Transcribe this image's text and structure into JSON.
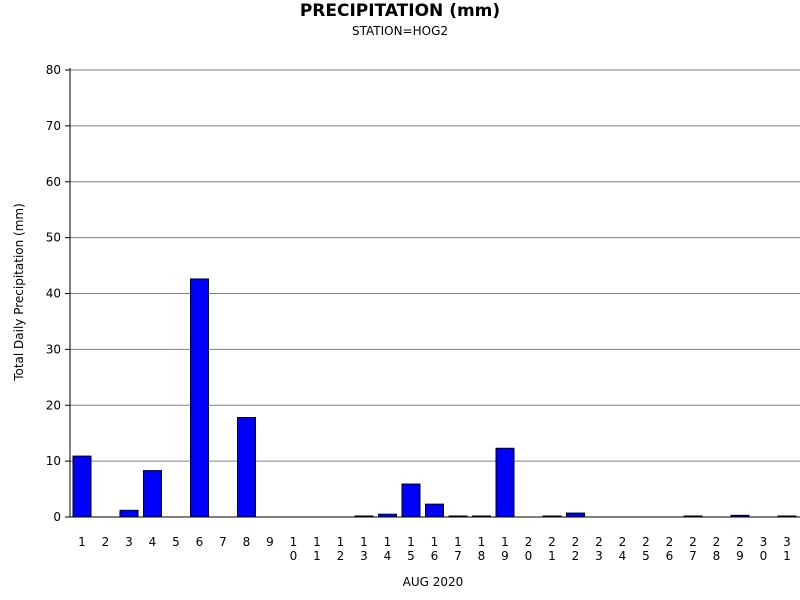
{
  "chart_data": {
    "type": "bar",
    "title": "PRECIPITATION (mm)",
    "subtitle": "STATION=HOG2",
    "xlabel": "AUG 2020",
    "ylabel": "Total Daily Precipitation (mm)",
    "ylim": [
      0,
      80
    ],
    "yticks": [
      0,
      10,
      20,
      30,
      40,
      50,
      60,
      70,
      80
    ],
    "grid": true,
    "bar_color": "#0000ff",
    "categories": [
      "1",
      "2",
      "3",
      "4",
      "5",
      "6",
      "7",
      "8",
      "9",
      "10",
      "11",
      "12",
      "13",
      "14",
      "15",
      "16",
      "17",
      "18",
      "19",
      "20",
      "21",
      "22",
      "23",
      "24",
      "25",
      "26",
      "27",
      "28",
      "29",
      "30",
      "31"
    ],
    "values": [
      10.9,
      0,
      1.2,
      8.3,
      0,
      42.6,
      0,
      17.8,
      0,
      0,
      0,
      0,
      0.1,
      0.5,
      5.9,
      2.3,
      0.1,
      0.1,
      12.3,
      0,
      0.1,
      0.7,
      0,
      0,
      0,
      0,
      0.1,
      0,
      0.3,
      0,
      0.1
    ]
  }
}
